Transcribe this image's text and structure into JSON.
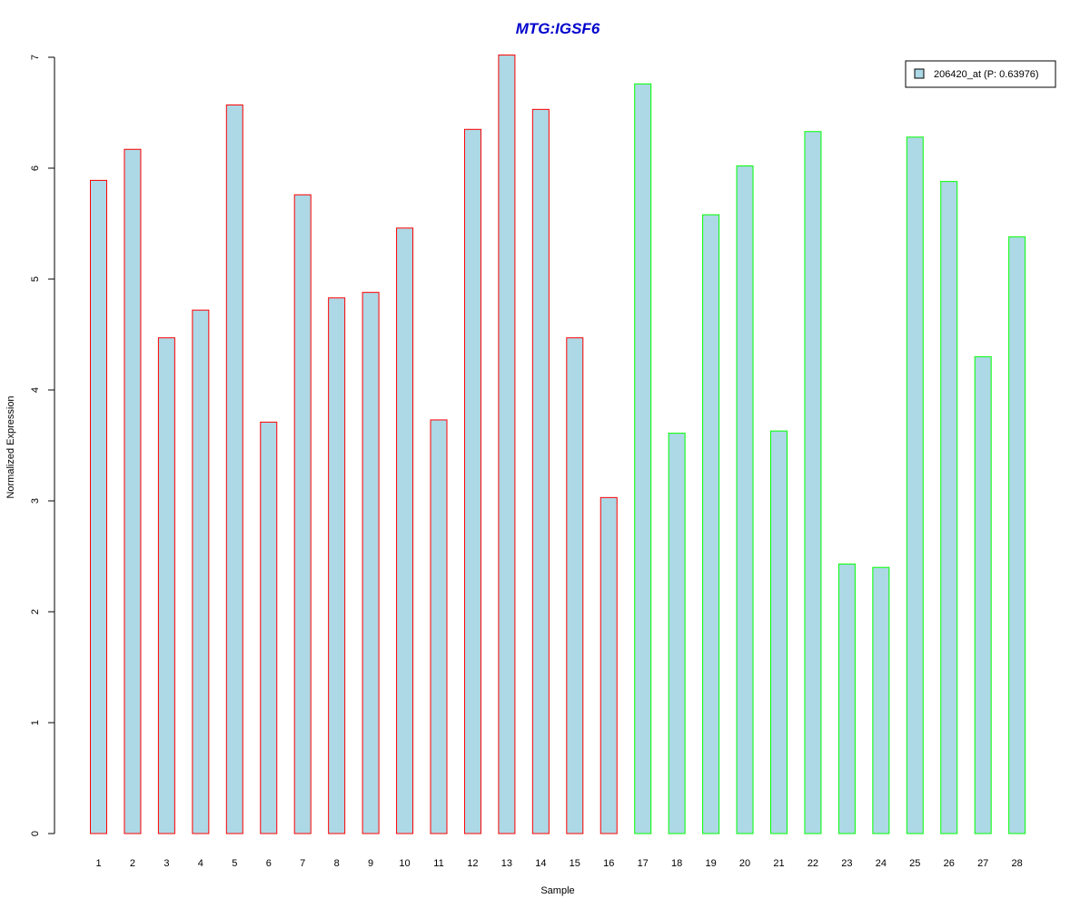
{
  "chart_data": {
    "type": "bar",
    "title": "MTG:IGSF6",
    "xlabel": "Sample",
    "ylabel": "Normalized Expression",
    "ylim": [
      0,
      7
    ],
    "yticks": [
      "0",
      "1",
      "2",
      "3",
      "4",
      "5",
      "6",
      "7"
    ],
    "grid": false,
    "legend": {
      "position": "top-right",
      "label": "206420_at (P: 0.63976)"
    },
    "categories": [
      "1",
      "2",
      "3",
      "4",
      "5",
      "6",
      "7",
      "8",
      "9",
      "10",
      "11",
      "12",
      "13",
      "14",
      "15",
      "16",
      "17",
      "18",
      "19",
      "20",
      "21",
      "22",
      "23",
      "24",
      "25",
      "26",
      "27",
      "28"
    ],
    "values": [
      5.89,
      6.17,
      4.47,
      4.72,
      6.57,
      3.71,
      5.76,
      4.83,
      4.88,
      5.46,
      3.73,
      6.35,
      7.02,
      6.53,
      4.47,
      3.03,
      6.76,
      3.61,
      5.58,
      6.02,
      3.63,
      6.33,
      2.43,
      2.4,
      6.28,
      5.88,
      4.3,
      5.38
    ],
    "groups": [
      "red",
      "red",
      "red",
      "red",
      "red",
      "red",
      "red",
      "red",
      "red",
      "red",
      "red",
      "red",
      "red",
      "red",
      "red",
      "red",
      "green",
      "green",
      "green",
      "green",
      "green",
      "green",
      "green",
      "green",
      "green",
      "green",
      "green",
      "green"
    ],
    "colors": {
      "fill": "#add8e6",
      "group_red": "#ff0000",
      "group_green": "#00ff00",
      "title": "#0000cc"
    }
  }
}
